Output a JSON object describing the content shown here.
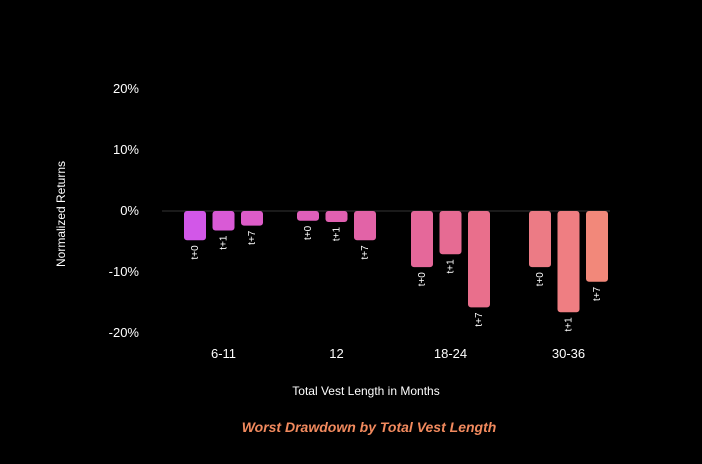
{
  "chart_data": {
    "type": "bar",
    "title": "Worst Drawdown by Total Vest Length",
    "xlabel": "Total Vest Length in Months",
    "ylabel": "Normalized Returns",
    "ylim": [
      -20,
      20
    ],
    "yticks": [
      {
        "value": 20,
        "label": "20%"
      },
      {
        "value": 10,
        "label": "10%"
      },
      {
        "value": 0,
        "label": "0%"
      },
      {
        "value": -10,
        "label": "-10%"
      },
      {
        "value": -20,
        "label": "-20%"
      }
    ],
    "grid": false,
    "zero_line": true,
    "groups": [
      {
        "category": "6-11",
        "bars": [
          {
            "label": "t+0",
            "value": -4.8,
            "color": "#d257e8"
          },
          {
            "label": "t+1",
            "value": -3.2,
            "color": "#d95ad6"
          },
          {
            "label": "t+7",
            "value": -2.4,
            "color": "#dd5cc8"
          }
        ]
      },
      {
        "category": "12",
        "bars": [
          {
            "label": "t+0",
            "value": -1.6,
            "color": "#df5fba"
          },
          {
            "label": "t+1",
            "value": -1.8,
            "color": "#e060b0"
          },
          {
            "label": "t+7",
            "value": -4.8,
            "color": "#e263a7"
          }
        ]
      },
      {
        "category": "18-24",
        "bars": [
          {
            "label": "t+0",
            "value": -9.2,
            "color": "#e5689a"
          },
          {
            "label": "t+1",
            "value": -7.1,
            "color": "#e66b93"
          },
          {
            "label": "t+7",
            "value": -15.8,
            "color": "#e96f8c"
          }
        ]
      },
      {
        "category": "30-36",
        "bars": [
          {
            "label": "t+0",
            "value": -9.2,
            "color": "#ec7b85"
          },
          {
            "label": "t+1",
            "value": -16.6,
            "color": "#ef7e82"
          },
          {
            "label": "t+7",
            "value": -11.6,
            "color": "#f2887a"
          }
        ]
      }
    ]
  }
}
